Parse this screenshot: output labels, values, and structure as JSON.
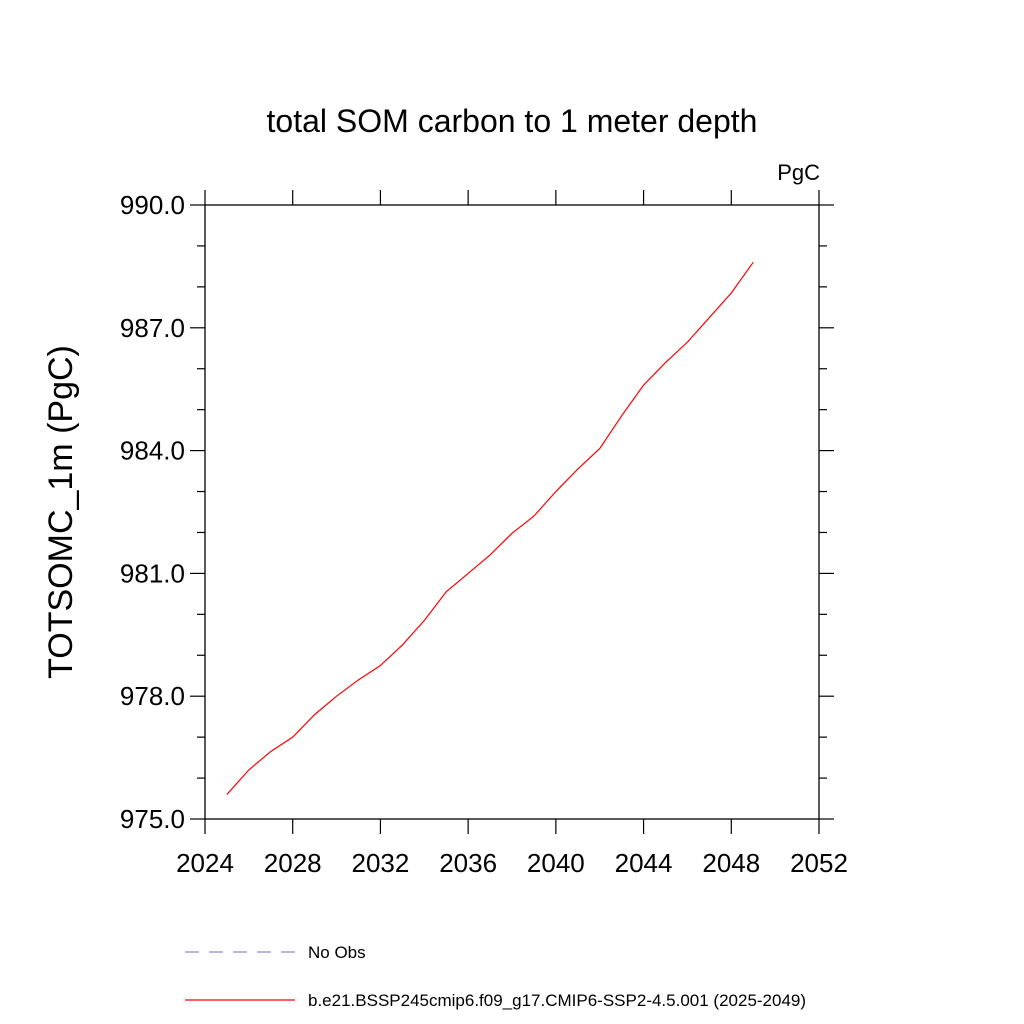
{
  "chart_data": {
    "type": "line",
    "title": "total SOM carbon to 1 meter depth",
    "units": "PgC",
    "ylabel": "TOTSOMC_1m  (PgC)",
    "xlabel": "",
    "xlim": [
      2024,
      2052
    ],
    "ylim": [
      975.0,
      990.0
    ],
    "xticks": [
      2024,
      2028,
      2032,
      2036,
      2040,
      2044,
      2048,
      2052
    ],
    "yticks": [
      "975.0",
      "978.0",
      "981.0",
      "984.0",
      "987.0",
      "990.0"
    ],
    "legend_position": "bottom",
    "series": [
      {
        "name": "No Obs",
        "color": "#8a86c9",
        "dash": "dashed",
        "x": [],
        "y": []
      },
      {
        "name": "b.e21.BSSP245cmip6.f09_g17.CMIP6-SSP2-4.5.001 (2025-2049)",
        "color": "#ff0000",
        "dash": "solid",
        "x": [
          2025,
          2026,
          2027,
          2028,
          2029,
          2030,
          2031,
          2032,
          2033,
          2034,
          2035,
          2036,
          2037,
          2038,
          2039,
          2040,
          2041,
          2042,
          2043,
          2044,
          2045,
          2046,
          2047,
          2048,
          2049
        ],
        "y": [
          975.6,
          976.2,
          976.65,
          977.0,
          977.55,
          978.0,
          978.4,
          978.75,
          979.25,
          979.85,
          980.55,
          981.0,
          981.45,
          981.98,
          982.4,
          983.0,
          983.55,
          984.05,
          984.85,
          985.6,
          986.15,
          986.65,
          987.25,
          987.85,
          988.6
        ]
      }
    ]
  }
}
